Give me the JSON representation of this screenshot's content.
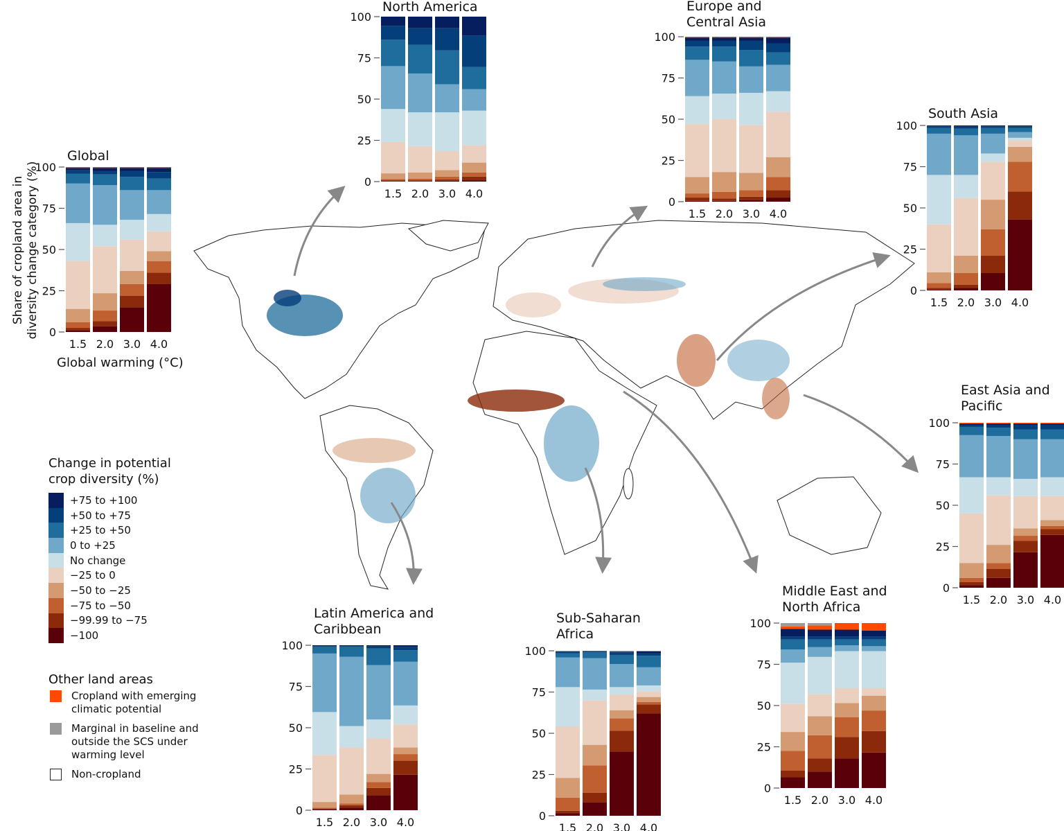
{
  "axis": {
    "ylabel": "Share of cropland area in\ndiversity change category (%)",
    "xlabel": "Global warming (°C)"
  },
  "legend": {
    "title": "Change in potential\ncrop diversity (%)",
    "items": [
      {
        "label": "+75 to +100",
        "color": "#071e5e"
      },
      {
        "label": "+50 to +75",
        "color": "#053f7b"
      },
      {
        "label": "+25 to +50",
        "color": "#1f6d9c"
      },
      {
        "label": "0 to +25",
        "color": "#6fa8c8"
      },
      {
        "label": "No change",
        "color": "#c9dfe8"
      },
      {
        "label": "−25 to 0",
        "color": "#ebcfbf"
      },
      {
        "label": "−50 to −25",
        "color": "#d49a72"
      },
      {
        "label": "−75 to −50",
        "color": "#c06030"
      },
      {
        "label": "−99.99 to −75",
        "color": "#8b2a0a"
      },
      {
        "label": "−100",
        "color": "#5a0008"
      }
    ],
    "other_title": "Other land areas",
    "other_items": [
      {
        "label": "Cropland with emerging\nclimatic potential",
        "color": "#ff4a00"
      },
      {
        "label": "Marginal in baseline and\noutside the SCS under\nwarming level",
        "color": "#9a9a9a"
      },
      {
        "label": "Non-cropland",
        "color": "#ffffff"
      }
    ]
  },
  "chart_data": {
    "type": "bar",
    "stacked": true,
    "categories": [
      "1.5",
      "2.0",
      "3.0",
      "4.0"
    ],
    "y_ticks": [
      "0",
      "25",
      "50",
      "75",
      "100"
    ],
    "ylim": [
      0,
      100
    ],
    "series_order_bottom_to_top": [
      "−100",
      "−99.99 to −75",
      "−75 to −50",
      "−50 to −25",
      "−25 to 0",
      "No change",
      "0 to +25",
      "+25 to +50",
      "+50 to +75",
      "+75 to +100",
      "Cropland with emerging climatic potential",
      "Marginal in baseline and outside the SCS under warming level"
    ],
    "panels": [
      {
        "id": "global",
        "title": "Global",
        "values": [
          [
            1,
            1.5,
            3.5,
            8,
            29,
            23,
            24,
            6,
            2,
            1.5,
            0.5,
            0
          ],
          [
            3.5,
            3,
            6.5,
            10.5,
            28.5,
            13,
            24,
            6.5,
            2,
            2,
            0.5,
            0
          ],
          [
            15,
            7,
            7,
            8,
            19,
            12,
            18,
            8,
            3.5,
            2,
            0.5,
            0
          ],
          [
            29,
            7,
            7,
            6,
            12,
            10.5,
            14.5,
            7,
            4,
            2.5,
            0.5,
            0
          ]
        ]
      },
      {
        "id": "north-america",
        "title": "North America",
        "values": [
          [
            0.3,
            0.5,
            0.7,
            3.5,
            19,
            20,
            26,
            16,
            8.5,
            5.5,
            0,
            0
          ],
          [
            0.3,
            0.5,
            1,
            3.7,
            16,
            20.5,
            23.5,
            17.5,
            10,
            7,
            0,
            0
          ],
          [
            0.5,
            0.8,
            1.7,
            4,
            11.5,
            23.5,
            17,
            20.5,
            13.5,
            7,
            0,
            0
          ],
          [
            0.8,
            2.2,
            2.5,
            6,
            10.5,
            21,
            13,
            13.5,
            19,
            11.5,
            0,
            0
          ]
        ]
      },
      {
        "id": "europe-central-asia",
        "title": "Europe and\nCentral Asia",
        "values": [
          [
            0.5,
            2,
            2.5,
            10,
            32,
            17,
            22,
            8,
            3.5,
            2,
            0.5,
            0
          ],
          [
            0.5,
            1.5,
            4,
            12,
            32,
            15.5,
            19.5,
            9,
            3.5,
            2,
            0.5,
            0
          ],
          [
            1,
            2,
            4,
            10.5,
            29,
            19.5,
            16,
            10,
            5.5,
            2,
            0.5,
            0
          ],
          [
            2.5,
            4.5,
            8,
            12,
            27.5,
            12.5,
            16,
            7.5,
            5.5,
            3.5,
            0.5,
            0
          ]
        ]
      },
      {
        "id": "south-asia",
        "title": "South Asia",
        "values": [
          [
            0.5,
            1,
            3,
            6.5,
            29,
            30,
            25,
            3.5,
            1,
            0.5,
            0,
            0
          ],
          [
            1.5,
            2,
            7,
            10.5,
            35,
            14,
            24,
            4,
            1.3,
            0.7,
            0,
            0
          ],
          [
            10.5,
            10.5,
            16,
            18,
            23,
            5,
            12,
            3.5,
            1,
            0.5,
            0,
            0
          ],
          [
            43,
            17,
            18,
            9,
            4,
            1.5,
            3.5,
            2.5,
            1,
            0.5,
            0,
            0
          ]
        ]
      },
      {
        "id": "east-asia-pacific",
        "title": "East Asia and\nPacific",
        "values": [
          [
            1.5,
            2,
            2.5,
            9,
            30,
            22,
            25.5,
            5,
            1,
            1,
            0.5,
            0
          ],
          [
            6,
            5.5,
            3.5,
            11,
            30,
            11,
            25,
            5,
            1.5,
            1,
            0.5,
            0
          ],
          [
            21.5,
            7,
            3,
            4.5,
            19.5,
            10.5,
            24,
            6,
            2.5,
            1,
            0.5,
            0
          ],
          [
            32,
            3.5,
            2,
            3.5,
            14.5,
            11.5,
            23,
            6,
            2.5,
            1,
            0.5,
            0
          ]
        ]
      },
      {
        "id": "middle-east-north-africa",
        "title": "Middle East and\nNorth Africa",
        "values": [
          [
            6.5,
            4,
            12,
            11.5,
            17,
            25,
            8,
            6,
            2,
            4.5,
            1.5,
            2
          ],
          [
            10,
            8,
            14,
            11.5,
            13.5,
            22.5,
            6,
            4.5,
            2,
            4,
            2.5,
            1.5
          ],
          [
            18,
            13,
            12,
            8.5,
            9,
            22.5,
            3.5,
            3.5,
            2,
            4,
            4,
            0
          ],
          [
            21.5,
            13,
            12.5,
            9,
            4.5,
            22.5,
            3,
            4,
            2,
            3.5,
            4.5,
            0
          ]
        ]
      },
      {
        "id": "sub-saharan-africa",
        "title": "Sub-Saharan\nAfrica",
        "values": [
          [
            1.5,
            1.5,
            8,
            12,
            31,
            24,
            18,
            2.5,
            0.8,
            0.4,
            0,
            0.3
          ],
          [
            8,
            6,
            16.5,
            12.5,
            27,
            6.5,
            19,
            3.5,
            0.5,
            0.3,
            0,
            0.2
          ],
          [
            39,
            12.5,
            7.5,
            5,
            9.5,
            4.5,
            14,
            5.5,
            1.5,
            0.5,
            0,
            0.5
          ],
          [
            62,
            5.5,
            1.5,
            3,
            3.5,
            3.5,
            11,
            7,
            1.5,
            1.2,
            0,
            0.3
          ]
        ]
      },
      {
        "id": "latin-america-caribbean",
        "title": "Latin America and\nCaribbean",
        "values": [
          [
            0.5,
            0.5,
            0.5,
            3.5,
            28.5,
            26,
            35.5,
            4,
            0.5,
            0.5,
            0,
            0
          ],
          [
            1.5,
            1.5,
            1,
            5.5,
            28.5,
            13,
            42,
            6,
            0.5,
            0.5,
            0,
            0
          ],
          [
            9,
            4.5,
            3.5,
            5,
            21.5,
            11.5,
            33,
            10,
            1.3,
            0.7,
            0,
            0
          ],
          [
            21.5,
            8.5,
            4,
            4,
            14,
            11.5,
            26.5,
            7,
            2,
            1,
            0,
            0
          ]
        ]
      }
    ]
  }
}
